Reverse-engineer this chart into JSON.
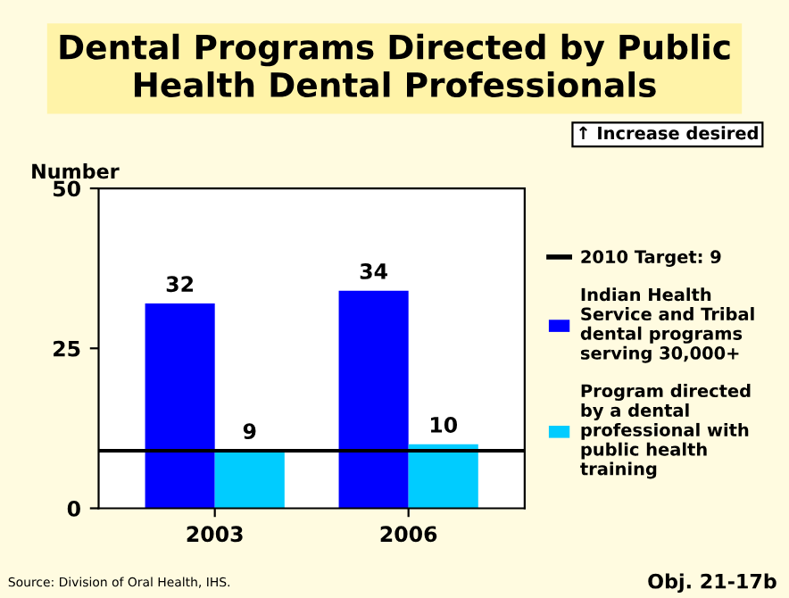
{
  "chart_data": {
    "type": "bar",
    "title": "Dental Programs Directed by Public Health Dental Professionals",
    "ylabel": "Number",
    "categories": [
      "2003",
      "2006"
    ],
    "series": [
      {
        "name": "Indian Health Service and Tribal dental programs serving 30,000+",
        "color": "#0000ff",
        "values": [
          32,
          34
        ]
      },
      {
        "name": "Program directed by a dental professional with public health training",
        "color": "#00ccff",
        "values": [
          9,
          10
        ]
      }
    ],
    "ylim": [
      0,
      50
    ],
    "yticks": [
      0,
      25,
      50
    ],
    "data_labels": true,
    "grid": false,
    "legend": "right",
    "ref_lines": [
      {
        "axis": "y",
        "value": 9,
        "label": "2010 Target: 9",
        "color": "#000000"
      }
    ],
    "annotations": [
      "↑ Increase desired",
      "Source: Division of Oral Health, IHS.",
      "Obj. 21-17b"
    ]
  }
}
